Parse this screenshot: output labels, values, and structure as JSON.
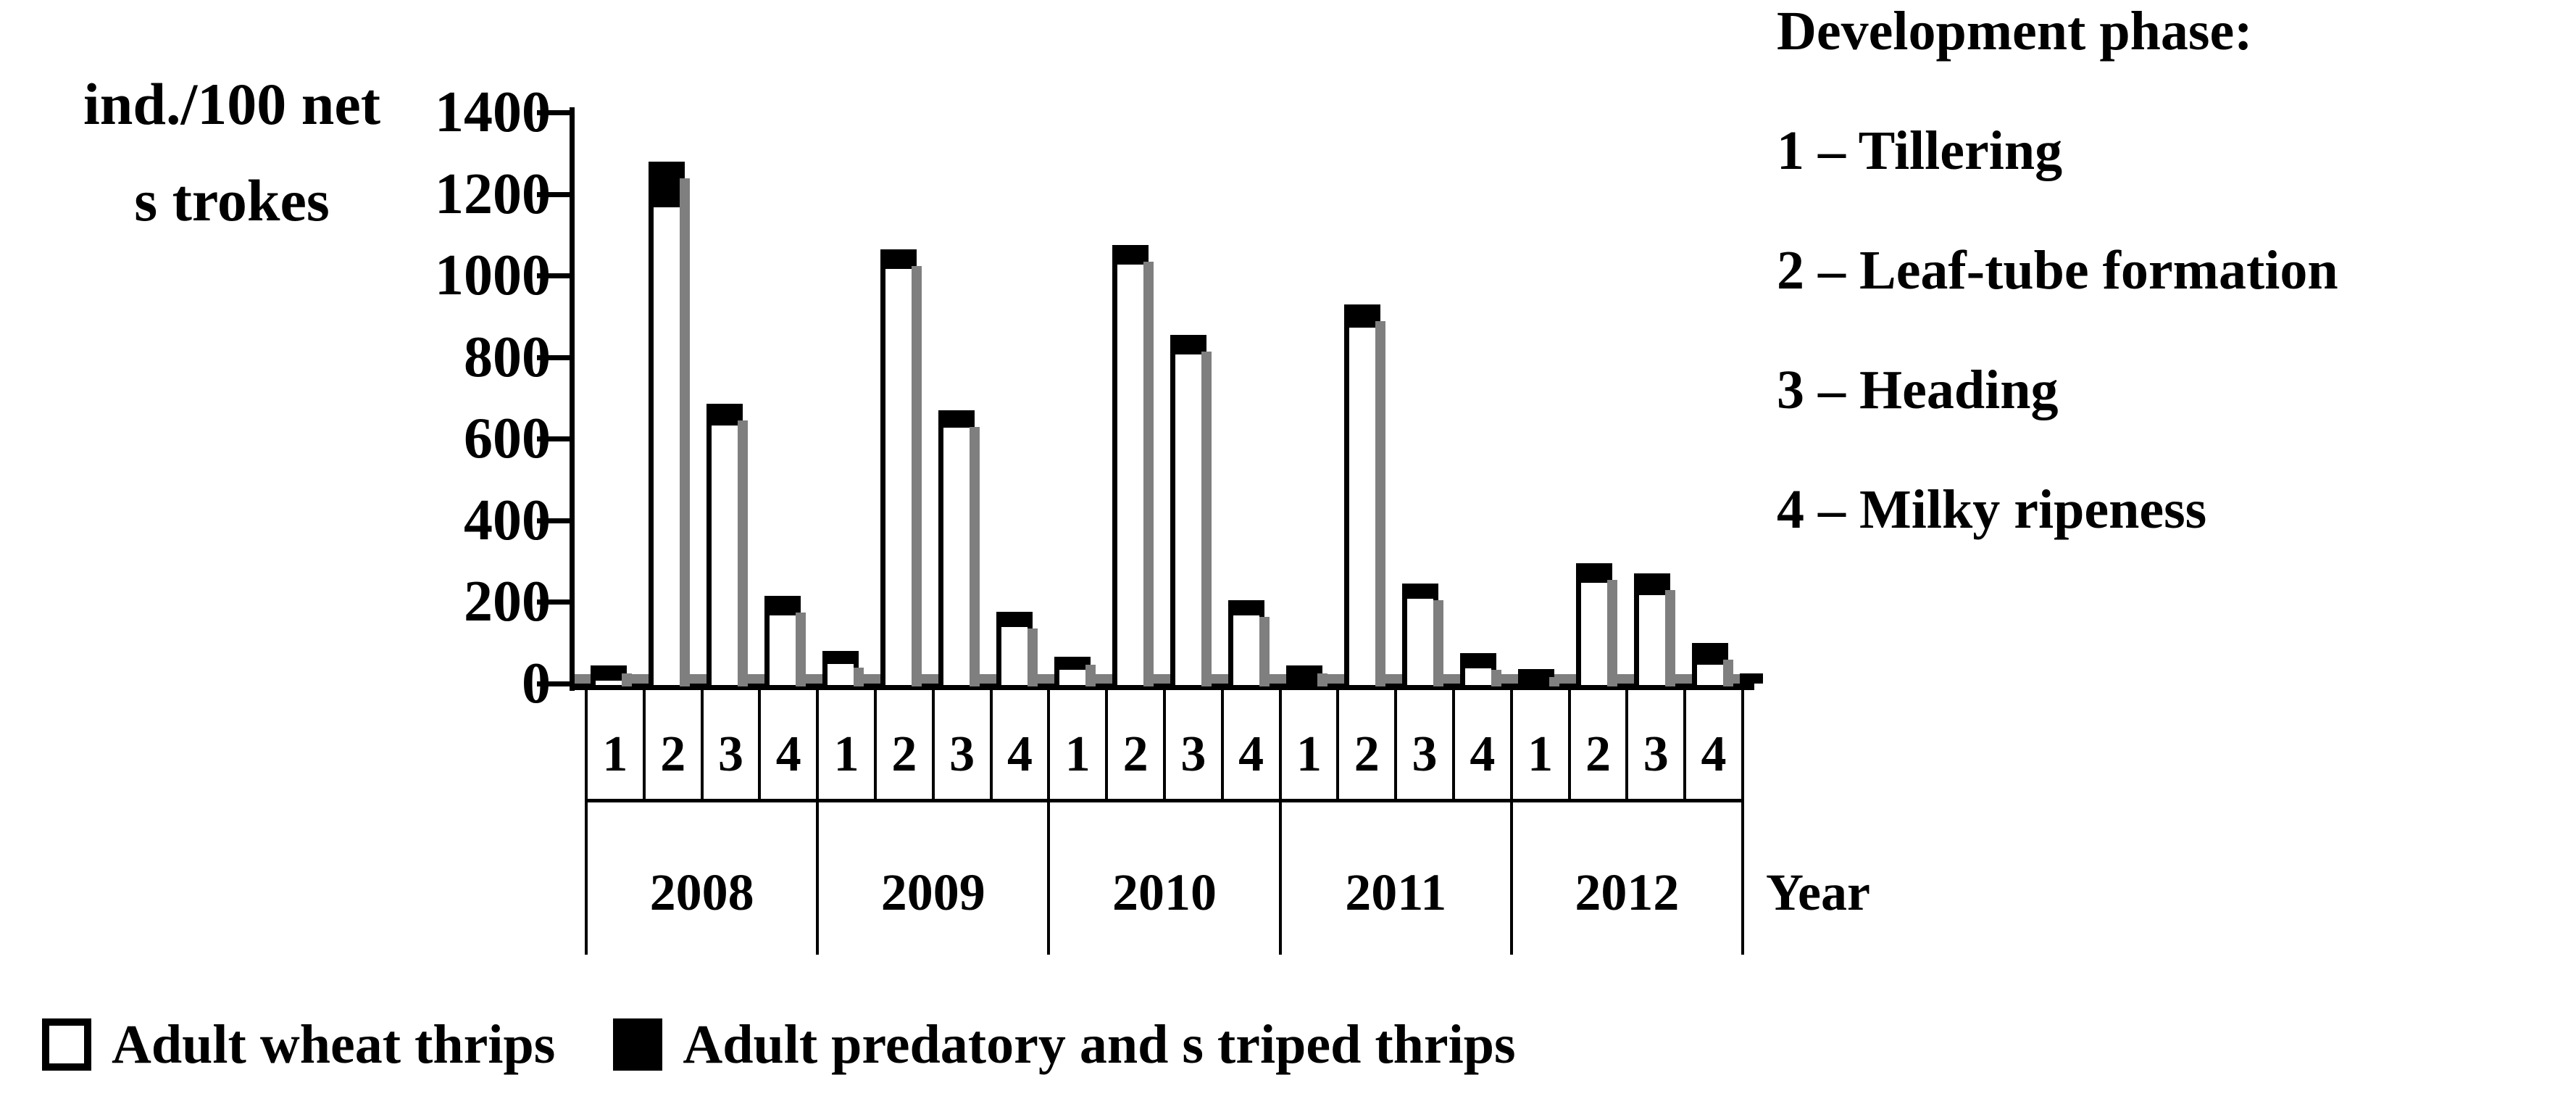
{
  "figure": {
    "background": "#ffffff",
    "text_color": "#000000",
    "shadow_color": "#7f7f7f"
  },
  "y_unit_line1": "ind./100 net",
  "y_unit_line2": "s trokes",
  "x_axis_title": "Year",
  "side_panel": {
    "title": "Development phase:",
    "items": [
      "1 – Tillering",
      "2 – Leaf-tube formation",
      "3 – Heading",
      "4 – Milky ripeness"
    ]
  },
  "chart_data": {
    "type": "bar",
    "stacked": true,
    "title": "",
    "ylabel": "ind./100 net s trokes",
    "xlabel": "Year",
    "ylim": [
      0,
      1400
    ],
    "yticks": [
      1400,
      1200,
      1000,
      800,
      600,
      400,
      200,
      0
    ],
    "grid": false,
    "legend_position": "bottom",
    "years": [
      "2008",
      "2009",
      "2010",
      "2011",
      "2012"
    ],
    "phases": [
      "1",
      "2",
      "3",
      "4"
    ],
    "series": [
      {
        "name": "Adult wheat thrips",
        "color": "#ffffff",
        "values": [
          [
            20,
            1180,
            645,
            180
          ],
          [
            60,
            1030,
            640,
            150
          ],
          [
            45,
            1040,
            820,
            180
          ],
          [
            5,
            885,
            220,
            50
          ],
          [
            5,
            260,
            230,
            60
          ]
        ]
      },
      {
        "name": "Adult predatory and s triped thrips",
        "color": "#000000",
        "values": [
          [
            25,
            100,
            40,
            35
          ],
          [
            20,
            35,
            30,
            25
          ],
          [
            20,
            35,
            35,
            25
          ],
          [
            40,
            45,
            25,
            25
          ],
          [
            30,
            35,
            40,
            40
          ]
        ]
      }
    ]
  }
}
